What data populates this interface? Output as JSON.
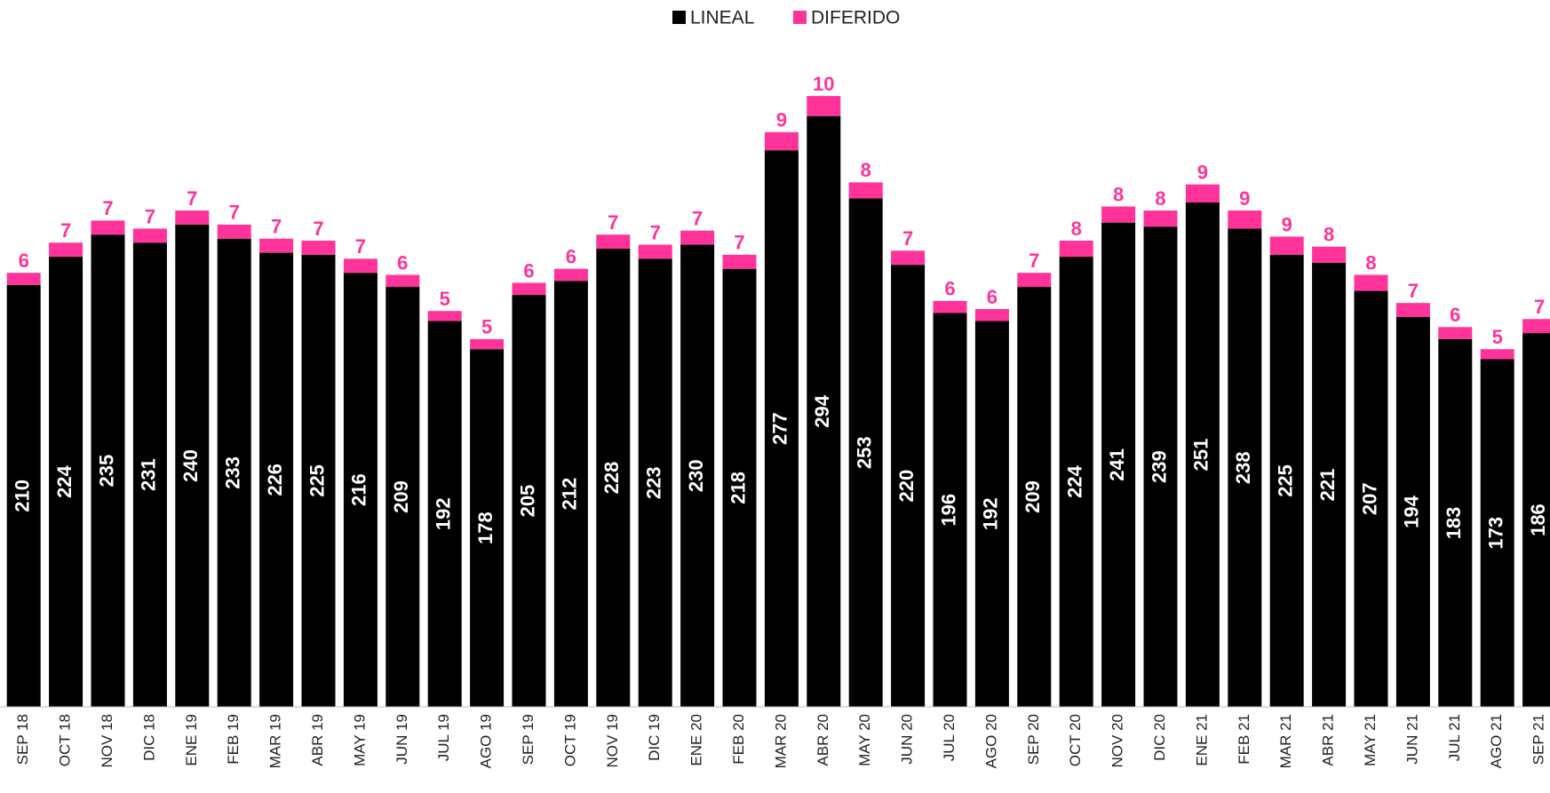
{
  "chart_data": {
    "type": "stacked_bar",
    "categories": [
      "SEP 18",
      "OCT 18",
      "NOV 18",
      "DIC 18",
      "ENE 19",
      "FEB 19",
      "MAR 19",
      "ABR 19",
      "MAY 19",
      "JUN 19",
      "JUL 19",
      "AGO 19",
      "SEP 19",
      "OCT 19",
      "NOV 19",
      "DIC 19",
      "ENE 20",
      "FEB 20",
      "MAR 20",
      "ABR 20",
      "MAY 20",
      "JUN 20",
      "JUL 20",
      "AGO 20",
      "SEP 20",
      "OCT 20",
      "NOV 20",
      "DIC 20",
      "ENE 21",
      "FEB 21",
      "MAR 21",
      "ABR 21",
      "MAY 21",
      "JUN 21",
      "JUL 21",
      "AGO 21",
      "SEP 21"
    ],
    "series": [
      {
        "name": "LINEAL",
        "color": "#000000",
        "label_color": "#ffffff",
        "values": [
          210,
          224,
          235,
          231,
          240,
          233,
          226,
          225,
          216,
          209,
          192,
          178,
          205,
          212,
          228,
          223,
          230,
          218,
          277,
          294,
          253,
          220,
          196,
          192,
          209,
          224,
          241,
          239,
          251,
          238,
          225,
          221,
          207,
          194,
          183,
          173,
          186
        ]
      },
      {
        "name": "DIFERIDO",
        "color": "#ff3399",
        "label_color": "#ff3399",
        "values": [
          6,
          7,
          7,
          7,
          7,
          7,
          7,
          7,
          7,
          6,
          5,
          5,
          6,
          6,
          7,
          7,
          7,
          7,
          9,
          10,
          8,
          7,
          6,
          6,
          7,
          8,
          8,
          8,
          9,
          9,
          9,
          8,
          8,
          7,
          6,
          5,
          7
        ]
      }
    ],
    "ylim": [
      0,
      350
    ],
    "legend": "top"
  }
}
